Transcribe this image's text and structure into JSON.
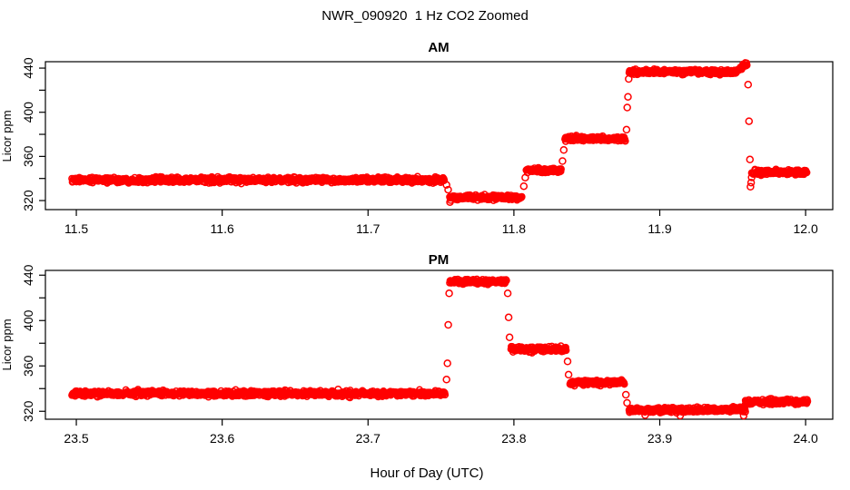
{
  "chart_data": {
    "type": "scatter",
    "title": "NWR_090920  1 Hz CO2 Zoomed",
    "xlabel": "Hour of Day (UTC)",
    "ylabel": "Licor ppm",
    "marker": "open-circle",
    "point_color": "#FF0000",
    "sample_rate_hz": 1,
    "grid": false,
    "panels": [
      {
        "title": "AM",
        "xlim": [
          11.4788,
          12.0186
        ],
        "xticks": [
          11.5,
          11.6,
          11.7,
          11.8,
          11.9,
          12.0
        ],
        "xtick_labels": [
          "11.5",
          "11.6",
          "11.7",
          "11.8",
          "11.9",
          "12.0"
        ],
        "ylim": [
          311.8,
          445.8
        ],
        "yticks_major": [
          320,
          360,
          400,
          440
        ],
        "ytick_labels": [
          "320",
          "360",
          "400",
          "440"
        ],
        "yticks_minor": [
          340,
          380,
          420
        ],
        "segments": [
          {
            "t_start": 11.497,
            "t_end": 11.7525,
            "v_start": 338.6,
            "v_end": 338.6,
            "noise": 1.2
          },
          {
            "t_start": 11.756,
            "t_end": 11.8055,
            "v_start": 322.8,
            "v_end": 322.8,
            "noise": 1.1
          },
          {
            "t_start": 11.8085,
            "t_end": 11.8325,
            "v_start": 347.3,
            "v_end": 347.3,
            "noise": 1.1
          },
          {
            "t_start": 11.835,
            "t_end": 11.8765,
            "v_start": 376.0,
            "v_end": 376.0,
            "noise": 1.1
          },
          {
            "t_start": 11.879,
            "t_end": 11.952,
            "v_start": 436.6,
            "v_end": 436.6,
            "noise": 1.1
          },
          {
            "t_start": 11.952,
            "t_end": 11.96,
            "v_start": 437.0,
            "v_end": 443.8,
            "noise": 1.0
          },
          {
            "t_start": 11.963,
            "t_end": 12.001,
            "v_start": 345.6,
            "v_end": 345.6,
            "noise": 1.1
          }
        ],
        "transition_points": [
          [
            11.7538,
            334.2
          ],
          [
            11.7549,
            329.8
          ],
          [
            11.7562,
            318.6
          ],
          [
            11.7566,
            320.4
          ],
          [
            11.8068,
            333.0
          ],
          [
            11.8078,
            340.8
          ],
          [
            11.8333,
            355.8
          ],
          [
            11.8342,
            365.8
          ],
          [
            11.8772,
            384.2
          ],
          [
            11.8777,
            404.3
          ],
          [
            11.8782,
            414.0
          ],
          [
            11.8787,
            430.2
          ],
          [
            11.9606,
            425.0
          ],
          [
            11.9612,
            391.9
          ],
          [
            11.9618,
            357.2
          ],
          [
            11.9622,
            332.5
          ],
          [
            11.9626,
            336.2
          ],
          [
            11.963,
            341.0
          ]
        ]
      },
      {
        "title": "PM",
        "xlim": [
          23.4788,
          24.0186
        ],
        "xticks": [
          23.5,
          23.6,
          23.7,
          23.8,
          23.9,
          24.0
        ],
        "xtick_labels": [
          "23.5",
          "23.6",
          "23.7",
          "23.8",
          "23.9",
          "24.0"
        ],
        "ylim": [
          313.0,
          444.2
        ],
        "yticks_major": [
          320,
          360,
          400,
          440
        ],
        "ytick_labels": [
          "320",
          "360",
          "400",
          "440"
        ],
        "yticks_minor": [
          340,
          380,
          420
        ],
        "segments": [
          {
            "t_start": 23.497,
            "t_end": 23.753,
            "v_start": 335.6,
            "v_end": 335.6,
            "noise": 1.2
          },
          {
            "t_start": 23.756,
            "t_end": 23.795,
            "v_start": 434.5,
            "v_end": 434.5,
            "noise": 1.1
          },
          {
            "t_start": 23.798,
            "t_end": 23.836,
            "v_start": 374.6,
            "v_end": 374.6,
            "noise": 1.1
          },
          {
            "t_start": 23.8385,
            "t_end": 23.876,
            "v_start": 345.4,
            "v_end": 345.4,
            "noise": 1.1
          },
          {
            "t_start": 23.879,
            "t_end": 23.959,
            "v_start": 321.3,
            "v_end": 321.3,
            "noise": 1.1
          },
          {
            "t_start": 23.9585,
            "t_end": 24.0015,
            "v_start": 328.4,
            "v_end": 328.4,
            "noise": 1.1
          }
        ],
        "transition_points": [
          [
            23.7538,
            348.0
          ],
          [
            23.7544,
            362.3
          ],
          [
            23.755,
            396.2
          ],
          [
            23.7556,
            424.0
          ],
          [
            23.7958,
            424.0
          ],
          [
            23.7964,
            402.8
          ],
          [
            23.797,
            385.2
          ],
          [
            23.8368,
            364.0
          ],
          [
            23.8375,
            352.3
          ],
          [
            23.8768,
            334.6
          ],
          [
            23.8776,
            327.4
          ],
          [
            23.89,
            316.6
          ],
          [
            23.914,
            316.2
          ],
          [
            23.9575,
            316.1
          ]
        ]
      }
    ]
  }
}
